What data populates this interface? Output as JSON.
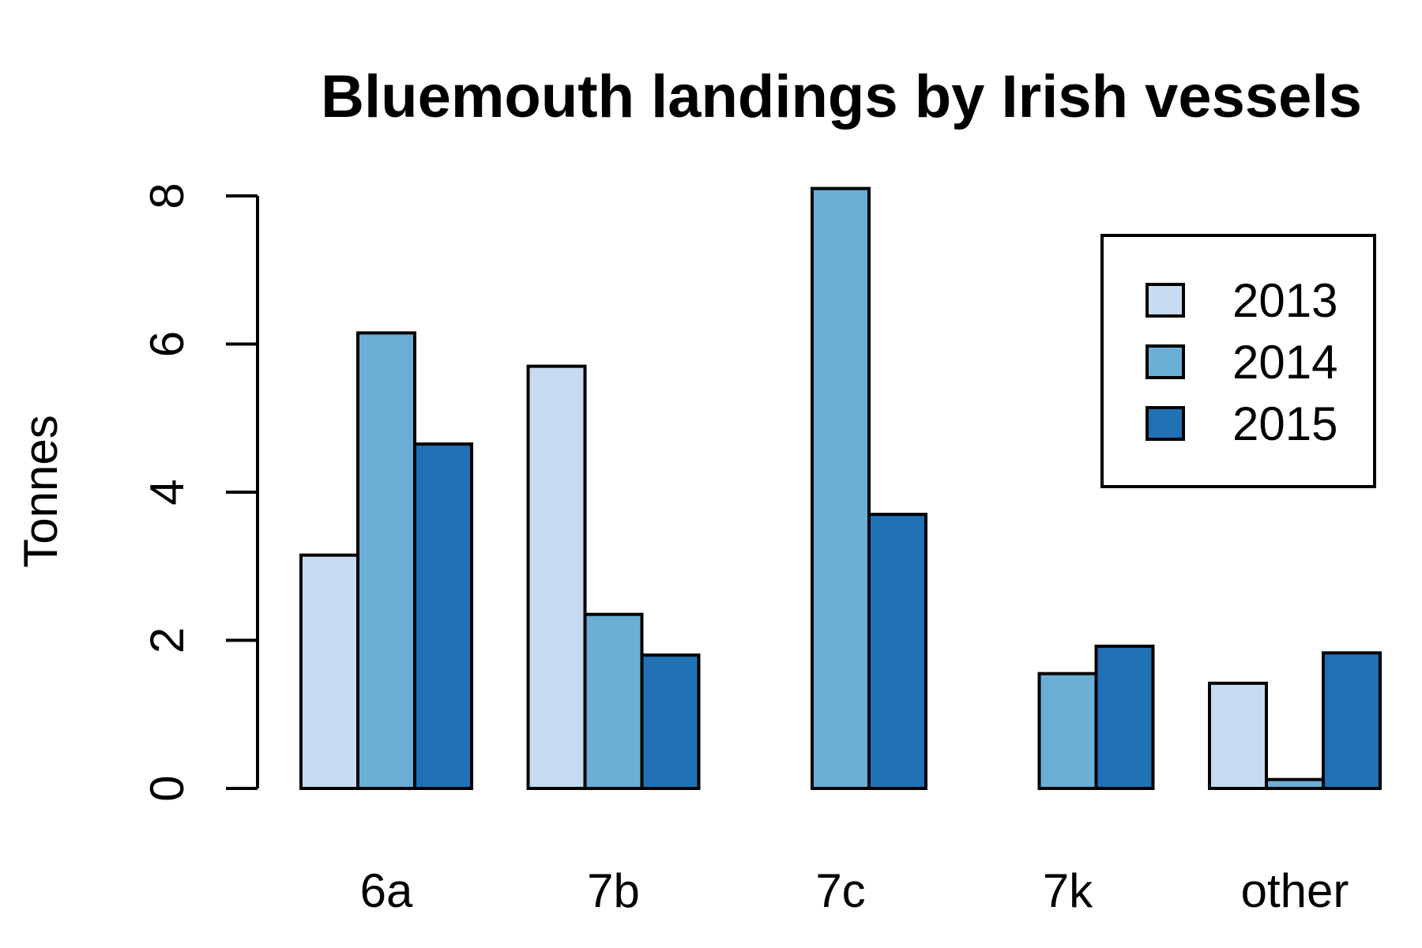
{
  "chart_data": {
    "type": "bar",
    "title": "Bluemouth landings by Irish vessels",
    "xlabel": "",
    "ylabel": "Tonnes",
    "ylim": [
      0,
      8
    ],
    "yticks": [
      "0",
      "2",
      "4",
      "6",
      "8"
    ],
    "categories": [
      "6a",
      "7b",
      "7c",
      "7k",
      "other"
    ],
    "series": [
      {
        "name": "2013",
        "color": "#c6dbef",
        "values": [
          3.15,
          5.7,
          0,
          0,
          1.42
        ]
      },
      {
        "name": "2014",
        "color": "#6baed6",
        "values": [
          6.15,
          2.35,
          8.1,
          1.55,
          0.12
        ]
      },
      {
        "name": "2015",
        "color": "#2171b5",
        "values": [
          4.65,
          1.8,
          3.7,
          1.92,
          1.83
        ]
      }
    ],
    "legend_position": "top-right",
    "grid": false
  }
}
